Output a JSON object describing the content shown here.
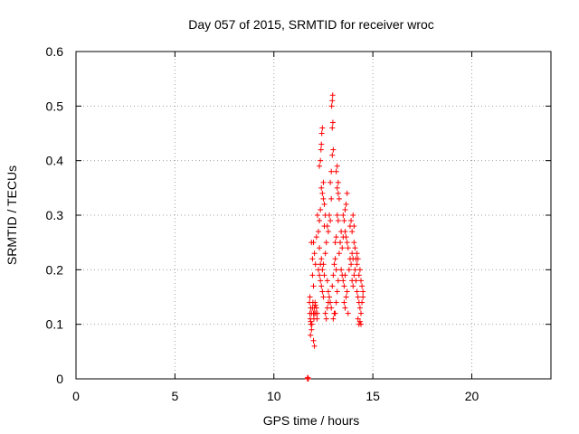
{
  "chart_data": {
    "type": "scatter",
    "title": "Day 057 of 2015, SRMTID for receiver wroc",
    "xlabel": "GPS time / hours",
    "ylabel": "SRMTID / TECUs",
    "xlim": [
      0,
      24
    ],
    "ylim": [
      0,
      0.6
    ],
    "xticks": [
      0,
      5,
      10,
      15,
      20
    ],
    "xtick_labels": [
      "0",
      "5",
      "10",
      "15",
      "20"
    ],
    "yticks": [
      0,
      0.1,
      0.2,
      0.3,
      0.4,
      0.5,
      0.6
    ],
    "ytick_labels": [
      "0",
      "0.1",
      "0.2",
      "0.3",
      "0.4",
      "0.5",
      "0.6"
    ],
    "grid": true,
    "marker": "+",
    "series": [
      {
        "name": "SRMTID",
        "color": "#ff0000",
        "points": [
          [
            11.7,
            0.0
          ],
          [
            11.72,
            0.0
          ],
          [
            11.74,
            0.0
          ],
          [
            11.7,
            0.002
          ],
          [
            11.72,
            0.002
          ],
          [
            11.8,
            0.14
          ],
          [
            11.82,
            0.12
          ],
          [
            11.84,
            0.11
          ],
          [
            11.86,
            0.13
          ],
          [
            11.88,
            0.1
          ],
          [
            11.9,
            0.12
          ],
          [
            11.82,
            0.15
          ],
          [
            11.86,
            0.105
          ],
          [
            11.9,
            0.09
          ],
          [
            11.92,
            0.1
          ],
          [
            11.95,
            0.13
          ],
          [
            11.97,
            0.14
          ],
          [
            12.0,
            0.12
          ],
          [
            12.02,
            0.11
          ],
          [
            12.04,
            0.13
          ],
          [
            12.06,
            0.12
          ],
          [
            12.08,
            0.14
          ],
          [
            12.1,
            0.135
          ],
          [
            12.12,
            0.12
          ],
          [
            12.15,
            0.13
          ],
          [
            12.18,
            0.11
          ],
          [
            12.2,
            0.12
          ],
          [
            11.85,
            0.08
          ],
          [
            12.0,
            0.07
          ],
          [
            12.05,
            0.06
          ],
          [
            11.95,
            0.19
          ],
          [
            12.0,
            0.17
          ],
          [
            11.9,
            0.25
          ],
          [
            12.0,
            0.25
          ],
          [
            11.95,
            0.22
          ],
          [
            12.05,
            0.23
          ],
          [
            12.1,
            0.21
          ],
          [
            12.15,
            0.26
          ],
          [
            12.2,
            0.3
          ],
          [
            12.25,
            0.27
          ],
          [
            12.3,
            0.29
          ],
          [
            12.35,
            0.31
          ],
          [
            12.3,
            0.39
          ],
          [
            12.35,
            0.4
          ],
          [
            12.38,
            0.42
          ],
          [
            12.4,
            0.43
          ],
          [
            12.42,
            0.45
          ],
          [
            12.45,
            0.46
          ],
          [
            12.4,
            0.35
          ],
          [
            12.45,
            0.34
          ],
          [
            12.5,
            0.33
          ],
          [
            12.55,
            0.32
          ],
          [
            12.5,
            0.36
          ],
          [
            12.3,
            0.24
          ],
          [
            12.4,
            0.22
          ],
          [
            12.45,
            0.2
          ],
          [
            12.5,
            0.21
          ],
          [
            12.55,
            0.19
          ],
          [
            12.35,
            0.18
          ],
          [
            12.4,
            0.17
          ],
          [
            12.45,
            0.16
          ],
          [
            12.5,
            0.15
          ],
          [
            12.25,
            0.2
          ],
          [
            12.3,
            0.19
          ],
          [
            12.35,
            0.21
          ],
          [
            12.6,
            0.23
          ],
          [
            12.65,
            0.25
          ],
          [
            12.7,
            0.28
          ],
          [
            12.75,
            0.27
          ],
          [
            12.8,
            0.3
          ],
          [
            12.85,
            0.29
          ],
          [
            12.9,
            0.33
          ],
          [
            12.85,
            0.36
          ],
          [
            12.9,
            0.38
          ],
          [
            12.95,
            0.41
          ],
          [
            13.0,
            0.42
          ],
          [
            12.95,
            0.46
          ],
          [
            12.98,
            0.47
          ],
          [
            12.92,
            0.5
          ],
          [
            12.95,
            0.51
          ],
          [
            12.97,
            0.52
          ],
          [
            12.7,
            0.18
          ],
          [
            12.75,
            0.16
          ],
          [
            12.8,
            0.15
          ],
          [
            12.85,
            0.14
          ],
          [
            12.9,
            0.13
          ],
          [
            12.95,
            0.17
          ],
          [
            13.0,
            0.19
          ],
          [
            13.05,
            0.21
          ],
          [
            13.1,
            0.22
          ],
          [
            13.15,
            0.2
          ],
          [
            13.1,
            0.25
          ],
          [
            13.15,
            0.26
          ],
          [
            13.2,
            0.3
          ],
          [
            13.25,
            0.29
          ],
          [
            13.2,
            0.35
          ],
          [
            13.25,
            0.34
          ],
          [
            13.3,
            0.33
          ],
          [
            13.15,
            0.38
          ],
          [
            13.2,
            0.39
          ],
          [
            13.25,
            0.36
          ],
          [
            13.1,
            0.12
          ],
          [
            13.15,
            0.14
          ],
          [
            13.2,
            0.16
          ],
          [
            13.25,
            0.18
          ],
          [
            13.3,
            0.23
          ],
          [
            13.35,
            0.25
          ],
          [
            13.4,
            0.27
          ],
          [
            13.45,
            0.24
          ],
          [
            13.5,
            0.26
          ],
          [
            13.4,
            0.2
          ],
          [
            13.45,
            0.19
          ],
          [
            13.5,
            0.18
          ],
          [
            13.55,
            0.17
          ],
          [
            13.6,
            0.19
          ],
          [
            13.5,
            0.3
          ],
          [
            13.55,
            0.29
          ],
          [
            13.6,
            0.31
          ],
          [
            13.65,
            0.32
          ],
          [
            13.7,
            0.34
          ],
          [
            13.6,
            0.27
          ],
          [
            13.65,
            0.26
          ],
          [
            13.7,
            0.25
          ],
          [
            13.75,
            0.24
          ],
          [
            13.55,
            0.14
          ],
          [
            13.6,
            0.13
          ],
          [
            13.65,
            0.15
          ],
          [
            13.7,
            0.16
          ],
          [
            13.75,
            0.12
          ],
          [
            13.8,
            0.2
          ],
          [
            13.85,
            0.22
          ],
          [
            13.9,
            0.21
          ],
          [
            13.95,
            0.23
          ],
          [
            14.0,
            0.22
          ],
          [
            13.85,
            0.28
          ],
          [
            13.9,
            0.29
          ],
          [
            13.95,
            0.27
          ],
          [
            14.0,
            0.3
          ],
          [
            14.05,
            0.28
          ],
          [
            13.95,
            0.18
          ],
          [
            14.0,
            0.17
          ],
          [
            14.05,
            0.19
          ],
          [
            14.1,
            0.2
          ],
          [
            14.15,
            0.18
          ],
          [
            14.05,
            0.25
          ],
          [
            14.1,
            0.24
          ],
          [
            14.15,
            0.22
          ],
          [
            14.2,
            0.21
          ],
          [
            14.2,
            0.16
          ],
          [
            14.25,
            0.15
          ],
          [
            14.3,
            0.14
          ],
          [
            14.35,
            0.13
          ],
          [
            14.4,
            0.12
          ],
          [
            14.25,
            0.11
          ],
          [
            14.3,
            0.1
          ],
          [
            14.35,
            0.105
          ],
          [
            14.4,
            0.1
          ],
          [
            14.3,
            0.19
          ],
          [
            14.35,
            0.2
          ],
          [
            14.4,
            0.18
          ],
          [
            14.45,
            0.17
          ],
          [
            14.5,
            0.15
          ],
          [
            14.45,
            0.14
          ],
          [
            14.5,
            0.16
          ],
          [
            14.2,
            0.23
          ],
          [
            14.25,
            0.22
          ],
          [
            12.6,
            0.12
          ],
          [
            12.65,
            0.11
          ],
          [
            12.7,
            0.13
          ],
          [
            12.75,
            0.14
          ],
          [
            13.05,
            0.12
          ],
          [
            13.0,
            0.11
          ],
          [
            12.55,
            0.28
          ],
          [
            12.6,
            0.3
          ]
        ]
      }
    ]
  }
}
